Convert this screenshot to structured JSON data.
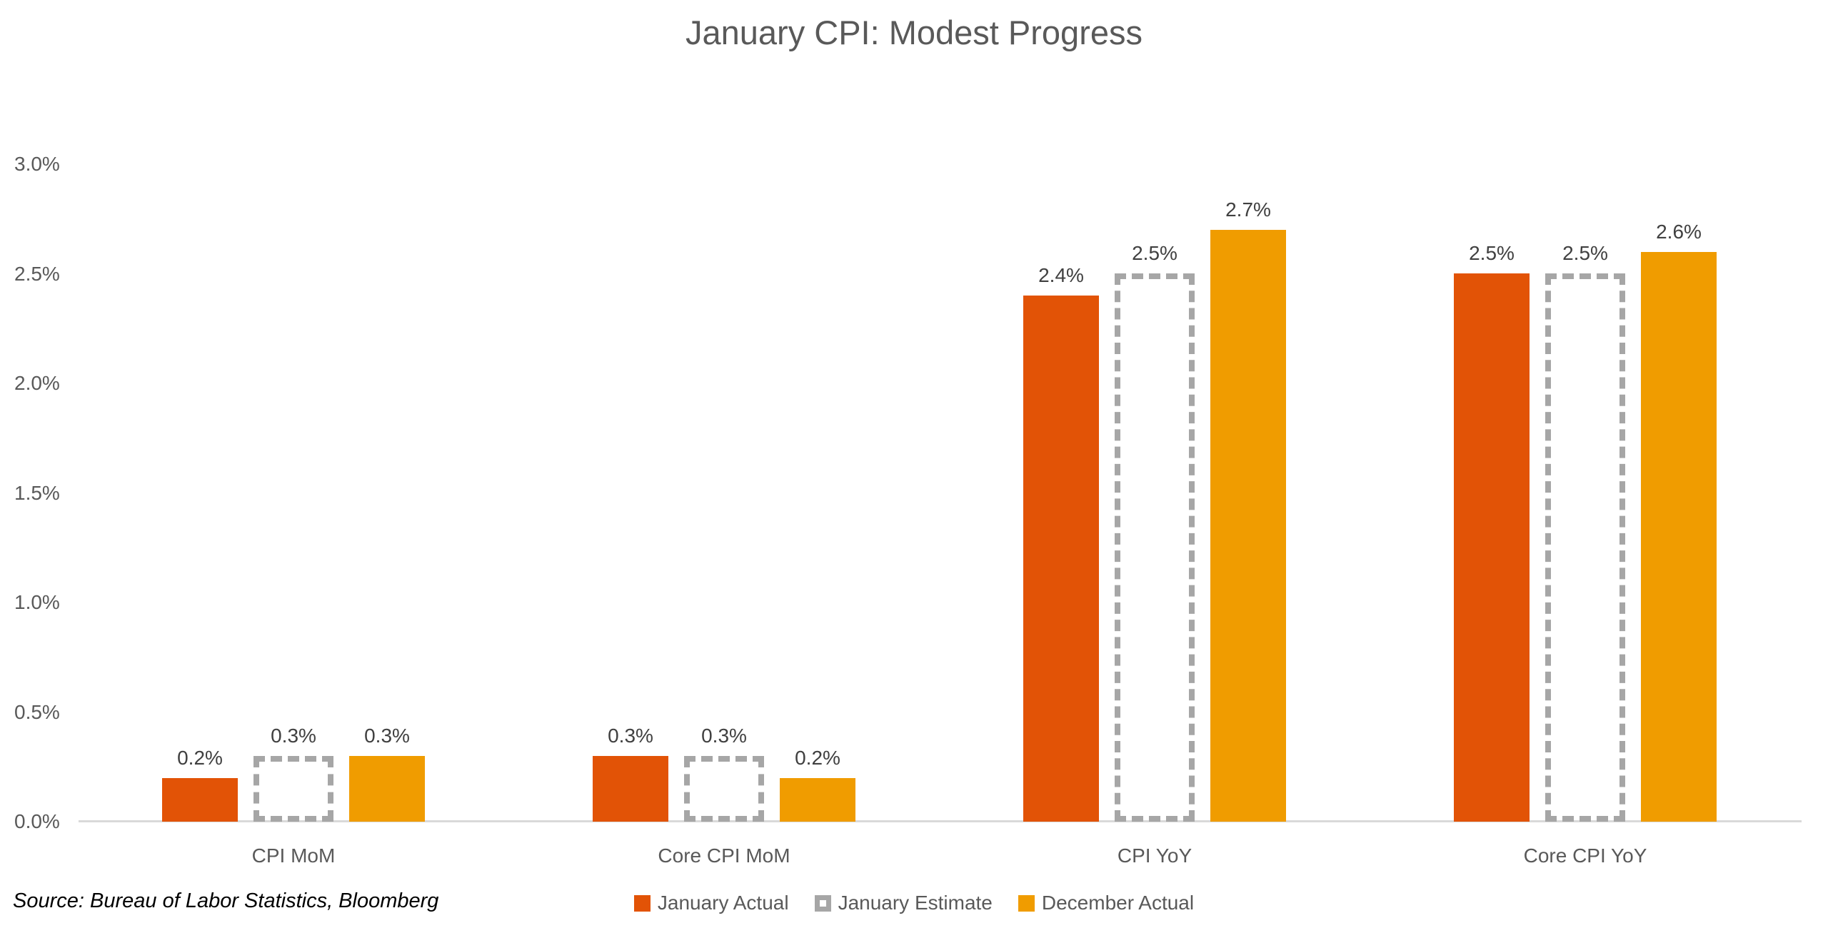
{
  "title": "January CPI: Modest Progress",
  "source_note": "Source: Bureau of Labor Statistics, Bloomberg",
  "colors": {
    "january_actual": "#E25306",
    "january_estimate_dash": "#A6A6A6",
    "december_actual": "#F09C00",
    "title_text": "#595959",
    "axis_text": "#595959",
    "data_label_text": "#404040",
    "axis_line": "#D9D9D9",
    "background": "#FFFFFF"
  },
  "chart_data": {
    "type": "bar",
    "title": "January CPI: Modest Progress",
    "categories": [
      "CPI MoM",
      "Core CPI MoM",
      "CPI YoY",
      "Core CPI YoY"
    ],
    "series": [
      {
        "name": "January Actual",
        "style": "solid",
        "color": "#E25306",
        "values": [
          0.2,
          0.3,
          2.4,
          2.5
        ],
        "labels": [
          "0.2%",
          "0.3%",
          "2.4%",
          "2.5%"
        ]
      },
      {
        "name": "January Estimate",
        "style": "dashed-outline",
        "color": "#A6A6A6",
        "values": [
          0.3,
          0.3,
          2.5,
          2.5
        ],
        "labels": [
          "0.3%",
          "0.3%",
          "2.5%",
          "2.5%"
        ]
      },
      {
        "name": "December Actual",
        "style": "solid",
        "color": "#F09C00",
        "values": [
          0.3,
          0.2,
          2.7,
          2.6
        ],
        "labels": [
          "0.3%",
          "0.2%",
          "2.7%",
          "2.6%"
        ]
      }
    ],
    "y_axis": {
      "unit": "%",
      "min": 0,
      "max": 3,
      "tick_values": [
        0,
        0.5,
        1,
        1.5,
        2,
        2.5,
        3
      ],
      "ticks": [
        "0.0%",
        "0.5%",
        "1.0%",
        "1.5%",
        "2.0%",
        "2.5%",
        "3.0%"
      ]
    },
    "gridlines": false,
    "legend_position": "bottom-center",
    "xlabel": "",
    "ylabel": ""
  }
}
